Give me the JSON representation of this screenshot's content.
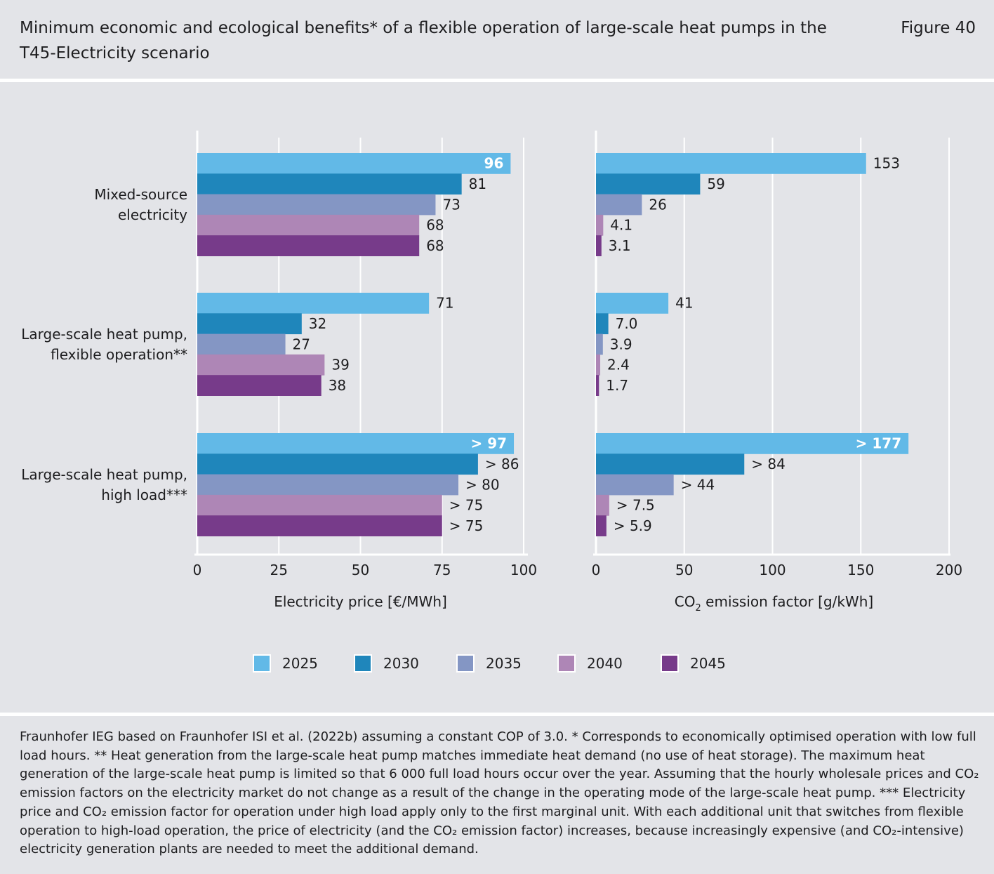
{
  "header": {
    "title": "Minimum economic and ecological benefits* of a flexible operation of large-scale heat pumps in the T45-Electricity scenario",
    "figure_label": "Figure 40"
  },
  "chart_data": [
    {
      "type": "bar",
      "orientation": "horizontal",
      "xlabel": "Electricity price [€/MWh]",
      "xlim": [
        0,
        100
      ],
      "ticks": [
        0,
        25,
        50,
        75,
        100
      ],
      "categories": [
        "Mixed-source\nelectricity",
        "Large-scale heat pump,\nflexible operation**",
        "Large-scale heat pump,\nhigh load***"
      ],
      "series": [
        {
          "name": "2025",
          "values": [
            96,
            71,
            97
          ],
          "labels": [
            "96",
            "71",
            "> 97"
          ]
        },
        {
          "name": "2030",
          "values": [
            81,
            32,
            86
          ],
          "labels": [
            "81",
            "32",
            "> 86"
          ]
        },
        {
          "name": "2035",
          "values": [
            73,
            27,
            80
          ],
          "labels": [
            "73",
            "27",
            "> 80"
          ]
        },
        {
          "name": "2040",
          "values": [
            68,
            39,
            75
          ],
          "labels": [
            "68",
            "39",
            "> 75"
          ]
        },
        {
          "name": "2045",
          "values": [
            68,
            38,
            75
          ],
          "labels": [
            "68",
            "38",
            "> 75"
          ]
        }
      ]
    },
    {
      "type": "bar",
      "orientation": "horizontal",
      "xlabel": "CO₂ emission factor [g/kWh]",
      "xlim": [
        0,
        200
      ],
      "ticks": [
        0,
        50,
        100,
        150,
        200
      ],
      "categories": [
        "Mixed-source\nelectricity",
        "Large-scale heat pump,\nflexible operation**",
        "Large-scale heat pump,\nhigh load***"
      ],
      "series": [
        {
          "name": "2025",
          "values": [
            153,
            41,
            177
          ],
          "labels": [
            "153",
            "41",
            "> 177"
          ]
        },
        {
          "name": "2030",
          "values": [
            59,
            7.0,
            84
          ],
          "labels": [
            "59",
            "7.0",
            "> 84"
          ]
        },
        {
          "name": "2035",
          "values": [
            26,
            3.9,
            44
          ],
          "labels": [
            "26",
            "3.9",
            "> 44"
          ]
        },
        {
          "name": "2040",
          "values": [
            4.1,
            2.4,
            7.5
          ],
          "labels": [
            "4.1",
            "2.4",
            "> 7.5"
          ]
        },
        {
          "name": "2045",
          "values": [
            3.1,
            1.7,
            5.9
          ],
          "labels": [
            "3.1",
            "1.7",
            "> 5.9"
          ]
        }
      ]
    }
  ],
  "legend": [
    {
      "label": "2025",
      "color": "#62b9e7"
    },
    {
      "label": "2030",
      "color": "#1f86bb"
    },
    {
      "label": "2035",
      "color": "#8496c4"
    },
    {
      "label": "2040",
      "color": "#ae86b6"
    },
    {
      "label": "2045",
      "color": "#773b8a"
    }
  ],
  "inside_label_color": "#ffffff",
  "footnote": "Fraunhofer IEG based on Fraunhofer ISI et al. (2022b) assuming a constant COP of 3.0. * Corresponds to economically optimised operation with low full load hours. ** Heat generation from the large-scale heat pump matches immediate heat demand (no use of heat storage). The maximum heat generation of the large-scale heat pump is limited so that 6 000 full load hours occur over the year. Assuming that the hourly wholesale prices and CO₂ emission factors on the electricity market do not change as a result of the change in the operating mode of the large-scale heat pump. *** Electricity price and CO₂ emission factor for operation under high load apply only to the first marginal unit. With each additional unit that switches from flexible operation to high-load operation, the price of electricity (and the CO₂ emission factor) increases, because increasingly expensive (and CO₂-intensive) electricity generation plants are needed to meet the additional demand."
}
